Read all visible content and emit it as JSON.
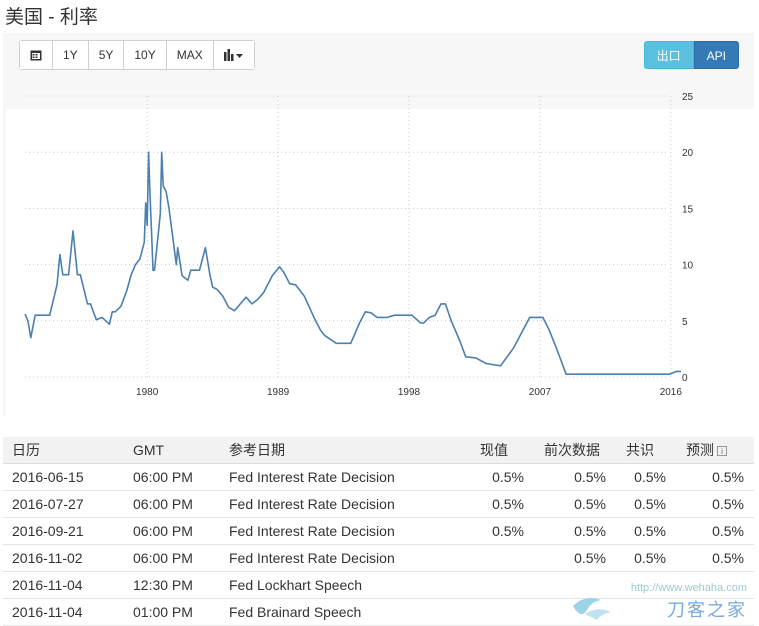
{
  "page": {
    "title": "美国 - 利率"
  },
  "toolbar": {
    "calendar_icon": "calendar-icon",
    "ranges": [
      "1Y",
      "5Y",
      "10Y",
      "MAX"
    ],
    "chart_type_icon": "bar-chart-icon",
    "export_label": "出口",
    "api_label": "API"
  },
  "chart_data": {
    "type": "line",
    "xlabel": "",
    "ylabel": "",
    "xlim": [
      1971.6,
      2016.7
    ],
    "ylim": [
      0,
      25
    ],
    "x_ticks": [
      1980,
      1989,
      1998,
      2007,
      2016
    ],
    "y_ticks": [
      0,
      5,
      10,
      15,
      20,
      25
    ],
    "y_axis_position": "right",
    "grid": true,
    "line_color": "#4a7fb0",
    "series": [
      {
        "x": [
          1971.6,
          1971.8,
          1972.0,
          1972.3,
          1972.6,
          1973.3,
          1973.8,
          1974.0,
          1974.2,
          1974.6,
          1974.9,
          1975.2,
          1975.4,
          1975.9,
          1976.1,
          1976.5,
          1976.9,
          1977.4,
          1977.6,
          1977.8,
          1978.2,
          1978.6,
          1978.9,
          1979.2,
          1979.5,
          1979.8,
          1979.9,
          1980.0,
          1980.1,
          1980.2,
          1980.3,
          1980.4,
          1980.5,
          1980.7,
          1980.9,
          1981.0,
          1981.1,
          1981.3,
          1981.5,
          1981.8,
          1982.0,
          1982.1,
          1982.4,
          1982.8,
          1983.0,
          1983.6,
          1984.0,
          1984.3,
          1984.5,
          1984.8,
          1985.2,
          1985.6,
          1986.0,
          1986.4,
          1986.8,
          1987.2,
          1987.6,
          1988.0,
          1988.6,
          1989.1,
          1989.4,
          1989.8,
          1990.2,
          1990.8,
          1991.5,
          1991.9,
          1992.2,
          1993.0,
          1994.0,
          1994.6,
          1995.0,
          1995.4,
          1995.8,
          1996.5,
          1997.0,
          1997.6,
          1998.2,
          1998.8,
          1999.0,
          1999.4,
          1999.8,
          2000.2,
          2000.5,
          2000.9,
          2001.5,
          2001.9,
          2002.6,
          2003.3,
          2004.3,
          2005.2,
          2006.3,
          2007.2,
          2007.6,
          2008.0,
          2008.3,
          2008.8,
          2009.5,
          2010.0,
          2011.0,
          2012.0,
          2013.0,
          2014.0,
          2015.0,
          2015.9,
          2016.4,
          2016.7
        ],
        "y": [
          5.6,
          5.0,
          3.5,
          5.5,
          5.5,
          5.5,
          8.2,
          10.9,
          9.1,
          9.1,
          13.0,
          9.1,
          9.1,
          6.5,
          6.5,
          5.1,
          5.3,
          4.7,
          5.8,
          5.8,
          6.3,
          7.7,
          9.1,
          10.0,
          10.5,
          12.0,
          15.5,
          13.5,
          20.0,
          16.0,
          13.0,
          9.5,
          9.5,
          12.0,
          14.5,
          20.0,
          17.0,
          16.5,
          15.0,
          12.0,
          10.0,
          11.5,
          9.0,
          8.6,
          9.5,
          9.5,
          11.5,
          9.2,
          8.0,
          7.8,
          7.2,
          6.2,
          5.9,
          6.5,
          7.1,
          6.5,
          6.9,
          7.5,
          9.0,
          9.8,
          9.3,
          8.3,
          8.2,
          7.2,
          5.2,
          4.2,
          3.7,
          3.0,
          3.0,
          4.8,
          5.8,
          5.7,
          5.3,
          5.3,
          5.5,
          5.5,
          5.5,
          4.8,
          4.8,
          5.3,
          5.5,
          6.5,
          6.5,
          5.0,
          3.2,
          1.8,
          1.7,
          1.2,
          1.0,
          2.6,
          5.3,
          5.3,
          4.3,
          3.0,
          2.0,
          0.25,
          0.25,
          0.25,
          0.25,
          0.25,
          0.25,
          0.25,
          0.25,
          0.25,
          0.5,
          0.5
        ]
      }
    ]
  },
  "table": {
    "headers": {
      "date": "日历",
      "time": "GMT",
      "event": "参考日期",
      "actual": "现值",
      "previous": "前次数据",
      "consensus": "共识",
      "forecast": "预测",
      "info_icon": "info-icon"
    },
    "rows": [
      {
        "date": "2016-06-15",
        "time": "06:00 PM",
        "event": "Fed Interest Rate Decision",
        "actual": "0.5%",
        "previous": "0.5%",
        "consensus": "0.5%",
        "forecast": "0.5%"
      },
      {
        "date": "2016-07-27",
        "time": "06:00 PM",
        "event": "Fed Interest Rate Decision",
        "actual": "0.5%",
        "previous": "0.5%",
        "consensus": "0.5%",
        "forecast": "0.5%"
      },
      {
        "date": "2016-09-21",
        "time": "06:00 PM",
        "event": "Fed Interest Rate Decision",
        "actual": "0.5%",
        "previous": "0.5%",
        "consensus": "0.5%",
        "forecast": "0.5%"
      },
      {
        "date": "2016-11-02",
        "time": "06:00 PM",
        "event": "Fed Interest Rate Decision",
        "actual": "",
        "previous": "0.5%",
        "consensus": "0.5%",
        "forecast": "0.5%"
      },
      {
        "date": "2016-11-04",
        "time": "12:30 PM",
        "event": "Fed Lockhart Speech",
        "actual": "",
        "previous": "",
        "consensus": "",
        "forecast": ""
      },
      {
        "date": "2016-11-04",
        "time": "01:00 PM",
        "event": "Fed Brainard Speech",
        "actual": "",
        "previous": "",
        "consensus": "",
        "forecast": ""
      }
    ]
  },
  "watermark": {
    "url": "http://www.wehaha.com",
    "text": "刀客之家"
  }
}
